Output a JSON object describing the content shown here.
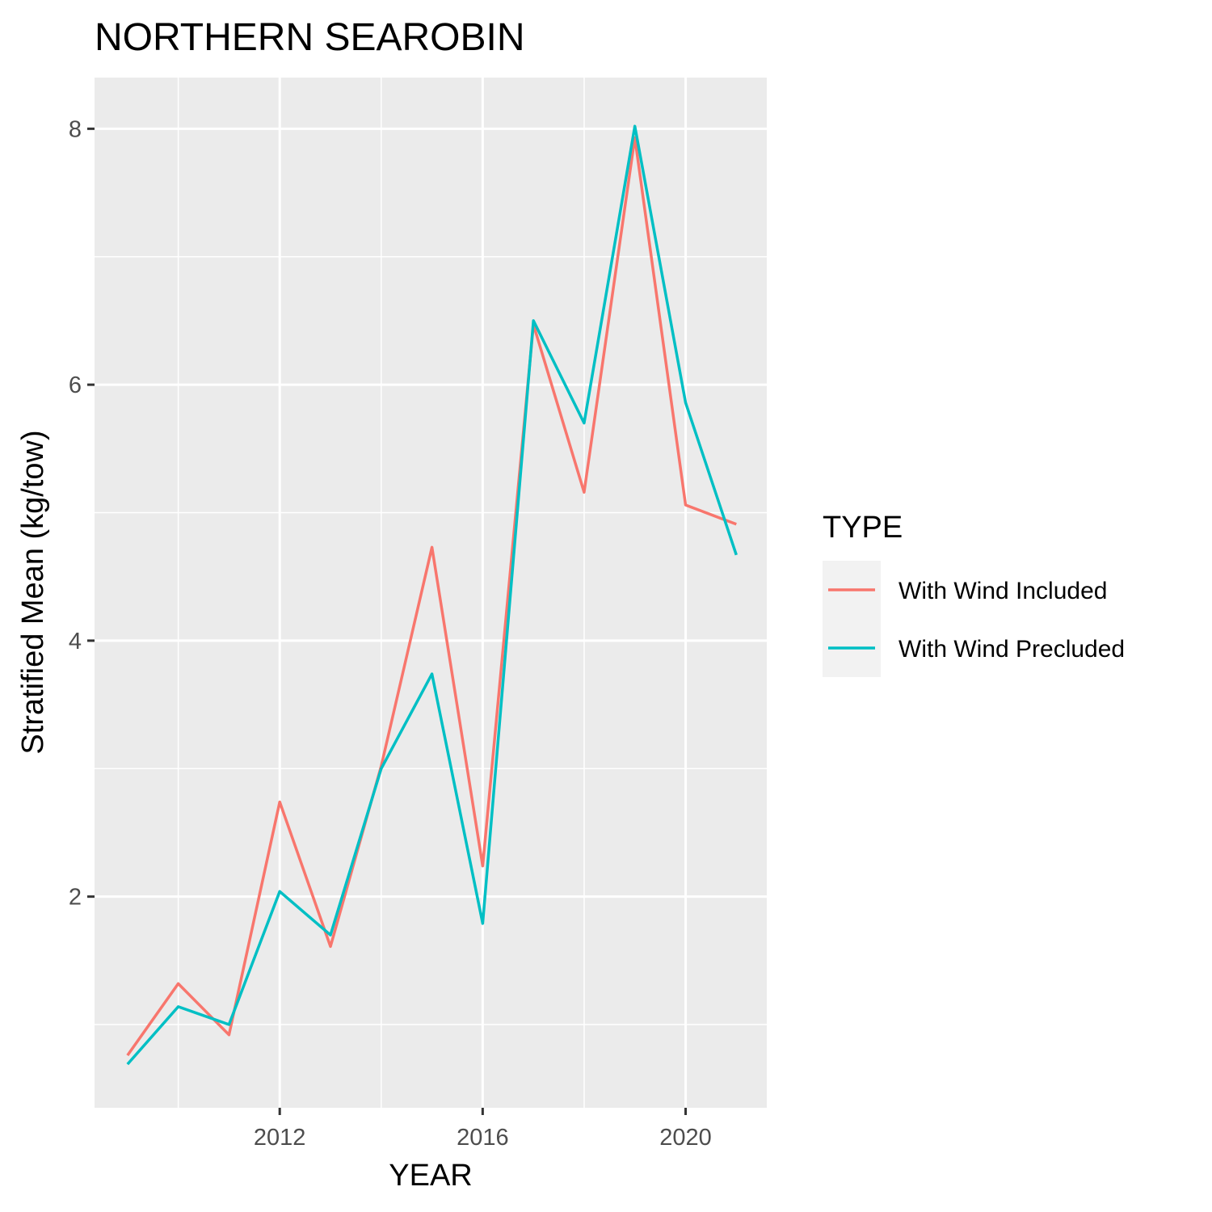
{
  "chart_data": {
    "type": "line",
    "title": "NORTHERN SEAROBIN",
    "xlabel": "YEAR",
    "ylabel": "Stratified Mean (kg/tow)",
    "x": [
      2009,
      2010,
      2011,
      2012,
      2013,
      2014,
      2015,
      2016,
      2017,
      2018,
      2019,
      2020,
      2021
    ],
    "xlim": [
      2008.35,
      2021.6
    ],
    "ylim": [
      0.35,
      8.4
    ],
    "x_ticks": [
      2012,
      2016,
      2020
    ],
    "x_minor_ticks": [
      2010,
      2014,
      2018
    ],
    "y_ticks": [
      2,
      4,
      6,
      8
    ],
    "y_minor_ticks": [
      1,
      3,
      5,
      7
    ],
    "grid": true,
    "legend": {
      "title": "TYPE",
      "position": "right"
    },
    "series": [
      {
        "name": "With Wind Included",
        "color": "#F8766D",
        "values": [
          0.76,
          1.32,
          0.92,
          2.74,
          1.61,
          3.02,
          4.73,
          2.24,
          6.47,
          5.16,
          7.93,
          5.06,
          4.91
        ]
      },
      {
        "name": "With Wind Precluded",
        "color": "#00BFC4",
        "values": [
          0.69,
          1.14,
          1.0,
          2.04,
          1.7,
          3.0,
          3.74,
          1.79,
          6.5,
          5.7,
          8.02,
          5.86,
          4.67
        ]
      }
    ]
  }
}
